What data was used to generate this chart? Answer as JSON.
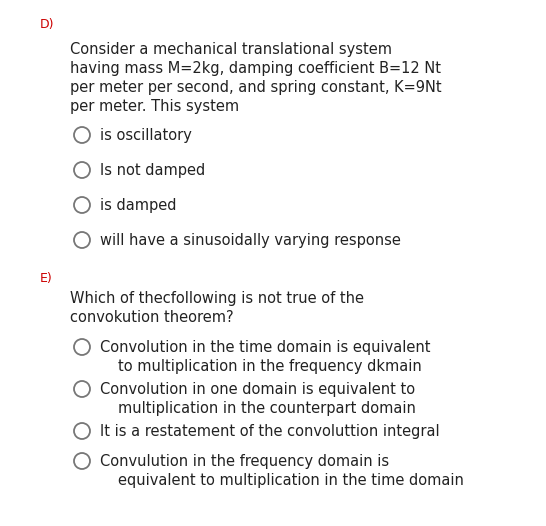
{
  "background_color": "#ffffff",
  "label_D": "D)",
  "label_E": "E)",
  "label_color": "#cc0000",
  "question_D_lines": [
    "Consider a mechanical translational system",
    "having mass M=2kg, damping coefficient B=12 Nt",
    "per meter per second, and spring constant, K=9Nt",
    "per meter. This system"
  ],
  "options_D": [
    "is oscillatory",
    "Is not damped",
    "is damped",
    "will have a sinusoidally varying response"
  ],
  "question_E_lines": [
    "Which of thecfollowing is not true of the",
    "convokution theorem?"
  ],
  "options_E": [
    [
      "Convolution in the time domain is equivalent",
      "to multiplication in the frequency dkmain"
    ],
    [
      "Convolution in one domain is equivalent to",
      "multiplication in the counterpart domain"
    ],
    [
      "It is a restatement of the convoluttion integral"
    ],
    [
      "Convulution in the frequency domain is",
      "equivalent to multiplication in the time domain"
    ]
  ],
  "text_color": "#222222",
  "circle_color": "#777777",
  "fig_width": 5.46,
  "fig_height": 5.26,
  "dpi": 100
}
